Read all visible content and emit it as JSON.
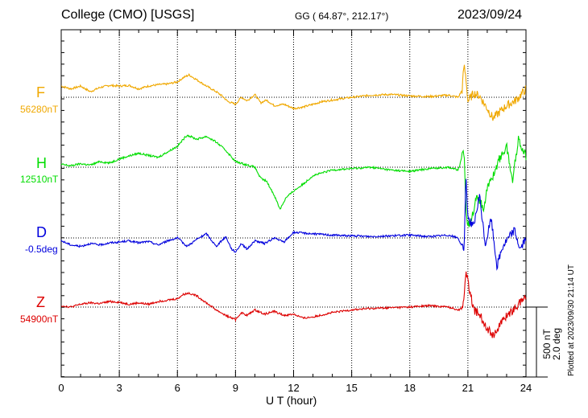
{
  "header": {
    "station": "College (CMO)  [USGS]",
    "coords": "GG ( 64.87°, 212.17°)",
    "date": "2023/09/24"
  },
  "footer": {
    "plotted": "Plotted at 2023/09/30 21:14 UT",
    "scale_nt": "500 nT",
    "scale_deg": "2.0 deg"
  },
  "chart_data": {
    "type": "line",
    "title": "College (CMO)  [USGS]",
    "xlabel": "U T (hour)",
    "ylabel": "",
    "xlim": [
      0,
      24
    ],
    "xticks": [
      0,
      3,
      6,
      9,
      12,
      15,
      18,
      21,
      24
    ],
    "grid": true,
    "scale": {
      "nT_per_bar": 500,
      "deg_per_bar": 2.0
    },
    "series": [
      {
        "name": "F",
        "baseline_label": "56280nT",
        "color": "#f0a800",
        "x": [
          0,
          0.5,
          1,
          1.5,
          2,
          2.5,
          3,
          3.5,
          4,
          4.5,
          5,
          5.5,
          6,
          6.3,
          6.6,
          7,
          7.5,
          8,
          8.3,
          8.6,
          9,
          9.3,
          9.6,
          10,
          10.3,
          10.6,
          11,
          11.5,
          12,
          12.5,
          13,
          13.5,
          14,
          15,
          16,
          17,
          18,
          19,
          20,
          20.5,
          20.7,
          20.8,
          20.9,
          21,
          21.3,
          21.6,
          22,
          22.3,
          22.6,
          23,
          23.5,
          24
        ],
        "values": [
          80,
          60,
          80,
          40,
          70,
          85,
          80,
          85,
          60,
          80,
          90,
          95,
          110,
          140,
          160,
          125,
          80,
          40,
          10,
          -30,
          -50,
          0,
          -25,
          20,
          -40,
          -20,
          -60,
          -50,
          -80,
          -70,
          -50,
          -30,
          -20,
          0,
          15,
          20,
          10,
          5,
          15,
          0,
          50,
          230,
          140,
          -30,
          30,
          10,
          -80,
          -150,
          -110,
          -60,
          -20,
          60
        ]
      },
      {
        "name": "H",
        "baseline_label": "12510nT",
        "color": "#00dd00",
        "x": [
          0,
          0.5,
          1,
          1.5,
          2,
          2.5,
          3,
          3.5,
          4,
          4.5,
          5,
          5.5,
          6,
          6.5,
          7,
          7.5,
          8,
          8.5,
          9,
          9.5,
          10,
          10.3,
          10.6,
          11,
          11.3,
          11.6,
          12,
          12.5,
          13,
          13.5,
          14,
          15,
          16,
          17,
          18,
          19,
          20,
          20.5,
          20.8,
          20.9,
          21,
          21.2,
          21.5,
          21.8,
          22,
          22.3,
          22.6,
          23,
          23.3,
          23.6,
          24
        ],
        "values": [
          20,
          10,
          25,
          15,
          40,
          30,
          60,
          80,
          100,
          85,
          70,
          110,
          150,
          230,
          200,
          220,
          180,
          120,
          40,
          20,
          0,
          -80,
          -100,
          -200,
          -300,
          -220,
          -170,
          -120,
          -60,
          -40,
          -20,
          -10,
          0,
          -20,
          -30,
          -10,
          0,
          -20,
          120,
          -300,
          -420,
          -350,
          -200,
          -300,
          -150,
          -60,
          50,
          150,
          -100,
          200,
          80
        ]
      },
      {
        "name": "D",
        "baseline_label": "-0.5deg",
        "color": "#0000dd",
        "x": [
          0,
          0.5,
          1,
          1.5,
          2,
          2.5,
          3,
          3.5,
          4,
          4.5,
          5,
          5.5,
          6,
          6.5,
          7,
          7.5,
          8,
          8.5,
          8.8,
          9,
          9.3,
          9.6,
          10,
          10.5,
          11,
          11.5,
          12,
          13,
          14,
          15,
          16,
          17,
          18,
          19,
          20,
          20.5,
          20.8,
          20.9,
          21,
          21.3,
          21.6,
          21.9,
          22.2,
          22.5,
          22.8,
          23.1,
          23.4,
          23.7,
          24
        ],
        "values": [
          -20,
          -50,
          -60,
          -40,
          -50,
          -35,
          -30,
          -20,
          -35,
          -25,
          -50,
          -20,
          0,
          -60,
          -10,
          30,
          -60,
          10,
          -80,
          -100,
          -40,
          -80,
          -20,
          -40,
          0,
          -30,
          40,
          30,
          20,
          15,
          10,
          15,
          20,
          10,
          20,
          0,
          -100,
          450,
          150,
          80,
          300,
          -50,
          140,
          -200,
          -60,
          0,
          60,
          -80,
          0
        ]
      },
      {
        "name": "Z",
        "baseline_label": "54900nT",
        "color": "#dd0000",
        "x": [
          0,
          0.5,
          1,
          1.5,
          2,
          2.5,
          3,
          3.5,
          4,
          4.5,
          5,
          5.5,
          6,
          6.3,
          6.6,
          7,
          7.5,
          8,
          8.5,
          9,
          9.3,
          9.6,
          10,
          10.5,
          11,
          11.5,
          12,
          12.5,
          13,
          14,
          15,
          16,
          17,
          18,
          19,
          20,
          20.5,
          20.7,
          20.8,
          20.9,
          21,
          21.3,
          21.6,
          22,
          22.3,
          22.6,
          23,
          23.5,
          24
        ],
        "values": [
          10,
          0,
          20,
          30,
          25,
          40,
          35,
          20,
          30,
          20,
          40,
          50,
          60,
          90,
          100,
          80,
          30,
          -20,
          -60,
          -90,
          -40,
          -60,
          -20,
          -50,
          -30,
          -60,
          -50,
          -80,
          -70,
          -40,
          -20,
          -10,
          -5,
          0,
          10,
          0,
          -20,
          -10,
          80,
          250,
          180,
          -20,
          -50,
          -150,
          -200,
          -140,
          -60,
          0,
          80
        ]
      }
    ]
  }
}
